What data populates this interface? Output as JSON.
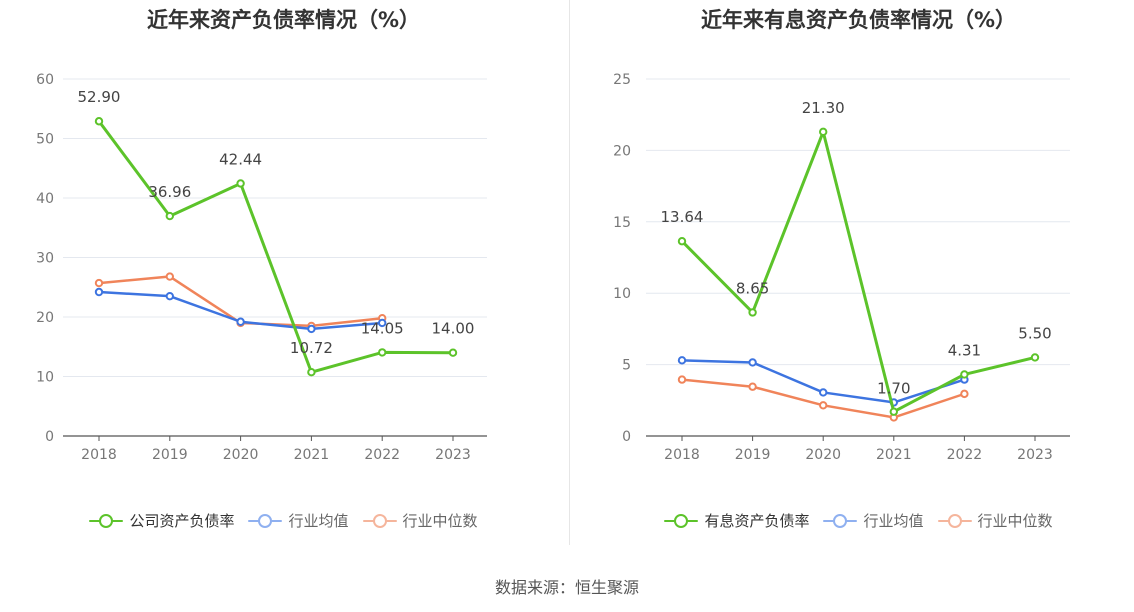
{
  "chart_data": [
    {
      "type": "line",
      "title": "近年来资产负债率情况（%）",
      "categories": [
        "2018",
        "2019",
        "2020",
        "2021",
        "2022",
        "2023"
      ],
      "ylim": [
        0,
        60
      ],
      "yticks": [
        0,
        10,
        20,
        30,
        40,
        50,
        60
      ],
      "grid": true,
      "legend_position": "bottom",
      "series": [
        {
          "name": "公司资产负债率",
          "color": "#5cc32a",
          "values": [
            52.9,
            36.96,
            42.44,
            10.72,
            14.05,
            14.0
          ],
          "labels": [
            "52.90",
            "36.96",
            "42.44",
            "10.72",
            "14.05",
            "14.00"
          ]
        },
        {
          "name": "行业均值",
          "color": "#3d74e0",
          "values": [
            24.2,
            23.5,
            19.2,
            18.0,
            19.0,
            null
          ]
        },
        {
          "name": "行业中位数",
          "color": "#f0845a",
          "values": [
            25.7,
            26.8,
            19.0,
            18.5,
            19.8,
            null
          ]
        }
      ]
    },
    {
      "type": "line",
      "title": "近年来有息资产负债率情况（%）",
      "categories": [
        "2018",
        "2019",
        "2020",
        "2021",
        "2022",
        "2023"
      ],
      "ylim": [
        0,
        25
      ],
      "yticks": [
        0,
        5,
        10,
        15,
        20,
        25
      ],
      "grid": true,
      "legend_position": "bottom",
      "series": [
        {
          "name": "有息资产负债率",
          "color": "#5cc32a",
          "values": [
            13.64,
            8.65,
            21.3,
            1.7,
            4.31,
            5.5
          ],
          "labels": [
            "13.64",
            "8.65",
            "21.30",
            "1.70",
            "4.31",
            "5.50"
          ]
        },
        {
          "name": "行业均值",
          "color": "#3d74e0",
          "values": [
            5.3,
            5.15,
            3.05,
            2.35,
            3.95,
            null
          ]
        },
        {
          "name": "行业中位数",
          "color": "#f0845a",
          "values": [
            3.95,
            3.45,
            2.15,
            1.3,
            2.95,
            null
          ]
        }
      ]
    }
  ],
  "footer": {
    "source": "数据来源：恒生聚源"
  }
}
